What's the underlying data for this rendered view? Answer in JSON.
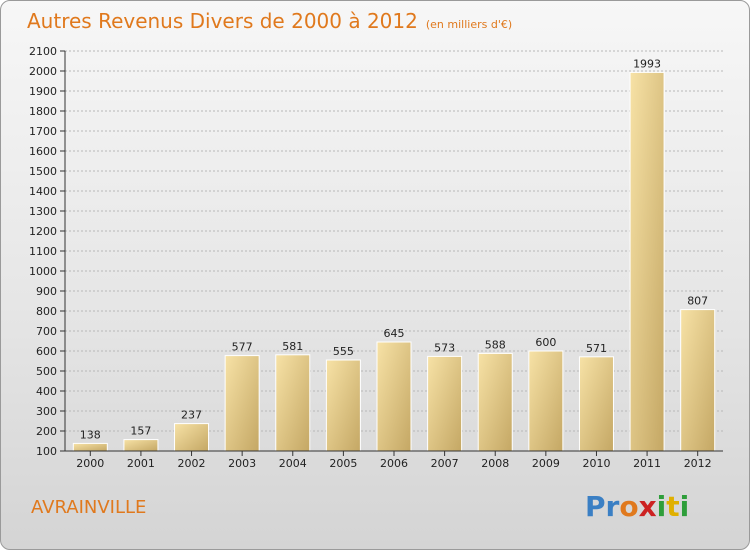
{
  "title": "Autres Revenus Divers de 2000 à 2012",
  "unit_note": "(en milliers d'€)",
  "city": "AVRAINVILLE",
  "brand": {
    "name": "Proxiti",
    "letters": [
      "P",
      "r",
      "o",
      "x",
      "i",
      "t",
      "i"
    ],
    "colors": [
      "#3a7fc4",
      "#3a7fc4",
      "#e0791d",
      "#cc2222",
      "#2e9e3a",
      "#e0b000",
      "#2e9e3a"
    ]
  },
  "chart_data": {
    "type": "bar",
    "categories": [
      "2000",
      "2001",
      "2002",
      "2003",
      "2004",
      "2005",
      "2006",
      "2007",
      "2008",
      "2009",
      "2010",
      "2011",
      "2012"
    ],
    "values": [
      138,
      157,
      237,
      577,
      581,
      555,
      645,
      573,
      588,
      600,
      571,
      1993,
      807
    ],
    "ylim": [
      100,
      2100
    ],
    "yticks": [
      100,
      200,
      300,
      400,
      500,
      600,
      700,
      800,
      900,
      1000,
      1100,
      1200,
      1300,
      1400,
      1500,
      1600,
      1700,
      1800,
      1900,
      2000,
      2100
    ],
    "grid": true,
    "colors": {
      "bar_light": "#f5dc9a",
      "bar_dark": "#c9ad6a",
      "title": "#e0791d"
    }
  }
}
